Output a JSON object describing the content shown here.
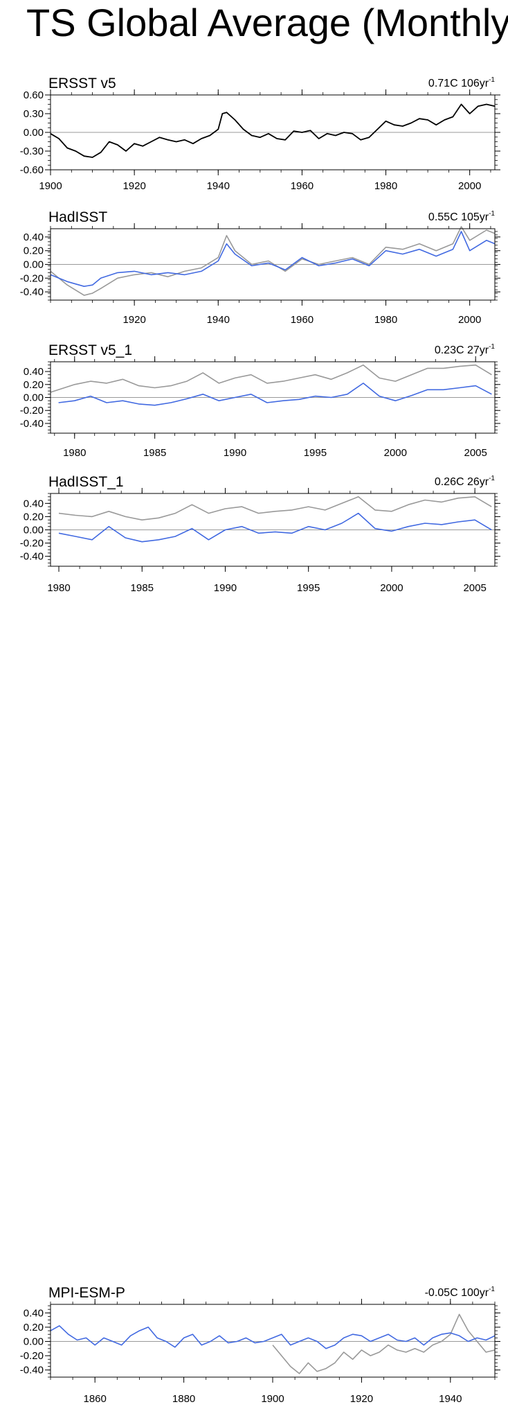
{
  "page": {
    "title": "TS Global Average (Monthly)"
  },
  "colors": {
    "obs": "#000000",
    "model": "#4169e1",
    "ref": "#999999",
    "zero": "#999999"
  },
  "chart_data": [
    {
      "type": "line",
      "title": "ERSST v5",
      "trend": {
        "value": "0.71C 106yr",
        "exp": "-1"
      },
      "xlim": [
        1900,
        2006
      ],
      "ylim": [
        -0.6,
        0.6
      ],
      "xticks": [
        1900,
        1920,
        1940,
        1960,
        1980,
        2000
      ],
      "yticks": [
        -0.6,
        -0.3,
        0.0,
        0.3,
        0.6
      ],
      "ytick_labels": [
        "-0.60",
        "-0.30",
        "0.00",
        "0.30",
        "0.60"
      ],
      "series": [
        {
          "style": "obs",
          "x": [
            1900,
            1902,
            1904,
            1906,
            1908,
            1910,
            1912,
            1914,
            1916,
            1918,
            1920,
            1922,
            1924,
            1926,
            1928,
            1930,
            1932,
            1934,
            1936,
            1938,
            1940,
            1941,
            1942,
            1944,
            1946,
            1948,
            1950,
            1952,
            1954,
            1956,
            1958,
            1960,
            1962,
            1964,
            1966,
            1968,
            1970,
            1972,
            1974,
            1976,
            1978,
            1980,
            1982,
            1984,
            1986,
            1988,
            1990,
            1992,
            1994,
            1996,
            1998,
            2000,
            2002,
            2004,
            2006
          ],
          "y": [
            -0.02,
            -0.1,
            -0.25,
            -0.3,
            -0.38,
            -0.4,
            -0.32,
            -0.15,
            -0.2,
            -0.3,
            -0.18,
            -0.22,
            -0.15,
            -0.08,
            -0.12,
            -0.15,
            -0.12,
            -0.18,
            -0.1,
            -0.05,
            0.05,
            0.3,
            0.32,
            0.2,
            0.05,
            -0.05,
            -0.08,
            -0.02,
            -0.1,
            -0.12,
            0.02,
            0.0,
            0.03,
            -0.1,
            -0.02,
            -0.05,
            0.0,
            -0.02,
            -0.12,
            -0.08,
            0.05,
            0.18,
            0.12,
            0.1,
            0.15,
            0.22,
            0.2,
            0.12,
            0.2,
            0.25,
            0.45,
            0.3,
            0.42,
            0.45,
            0.42
          ]
        }
      ]
    },
    {
      "type": "line",
      "title": "HadISST",
      "trend": {
        "value": "0.55C 105yr",
        "exp": "-1"
      },
      "xlim": [
        1900,
        2006
      ],
      "ylim": [
        -0.52,
        0.52
      ],
      "xticks": [
        1920,
        1940,
        1960,
        1980,
        2000
      ],
      "yticks": [
        -0.4,
        -0.2,
        0.0,
        0.2,
        0.4
      ],
      "ytick_labels": [
        "-0.40",
        "-0.20",
        "0.00",
        "0.20",
        "0.40"
      ],
      "series": [
        {
          "style": "ref",
          "x": [
            1900,
            1904,
            1908,
            1910,
            1912,
            1916,
            1920,
            1924,
            1928,
            1932,
            1936,
            1940,
            1942,
            1944,
            1948,
            1952,
            1956,
            1960,
            1964,
            1968,
            1972,
            1976,
            1980,
            1984,
            1988,
            1992,
            1996,
            1998,
            2000,
            2004,
            2006
          ],
          "y": [
            -0.1,
            -0.3,
            -0.45,
            -0.42,
            -0.35,
            -0.2,
            -0.15,
            -0.12,
            -0.18,
            -0.1,
            -0.05,
            0.1,
            0.42,
            0.2,
            0.0,
            0.05,
            -0.1,
            0.08,
            0.0,
            0.05,
            0.1,
            0.0,
            0.25,
            0.22,
            0.3,
            0.2,
            0.3,
            0.55,
            0.35,
            0.5,
            0.45
          ]
        },
        {
          "style": "model",
          "x": [
            1900,
            1904,
            1908,
            1910,
            1912,
            1916,
            1920,
            1924,
            1928,
            1932,
            1936,
            1940,
            1942,
            1944,
            1948,
            1952,
            1956,
            1960,
            1964,
            1968,
            1972,
            1976,
            1980,
            1984,
            1988,
            1992,
            1996,
            1998,
            2000,
            2004,
            2006
          ],
          "y": [
            -0.15,
            -0.25,
            -0.32,
            -0.3,
            -0.2,
            -0.12,
            -0.1,
            -0.15,
            -0.12,
            -0.15,
            -0.1,
            0.05,
            0.3,
            0.15,
            -0.02,
            0.02,
            -0.08,
            0.1,
            -0.02,
            0.02,
            0.08,
            -0.02,
            0.2,
            0.15,
            0.22,
            0.12,
            0.22,
            0.48,
            0.2,
            0.35,
            0.3
          ]
        }
      ]
    },
    {
      "type": "line",
      "title": "ERSST v5_1",
      "trend": {
        "value": "0.23C 27yr",
        "exp": "-1"
      },
      "xlim": [
        1978.5,
        2006.2
      ],
      "ylim": [
        -0.55,
        0.55
      ],
      "xticks": [
        1980,
        1985,
        1990,
        1995,
        2000,
        2005
      ],
      "yticks": [
        -0.4,
        -0.2,
        0.0,
        0.2,
        0.4
      ],
      "ytick_labels": [
        "-0.40",
        "-0.20",
        "0.00",
        "0.20",
        "0.40"
      ],
      "series": [
        {
          "style": "ref",
          "x": [
            1978.5,
            1980,
            1981,
            1982,
            1983,
            1984,
            1985,
            1986,
            1987,
            1988,
            1989,
            1990,
            1991,
            1992,
            1993,
            1994,
            1995,
            1996,
            1997,
            1998,
            1999,
            2000,
            2001,
            2002,
            2003,
            2004,
            2005,
            2006
          ],
          "y": [
            0.08,
            0.2,
            0.25,
            0.22,
            0.28,
            0.18,
            0.15,
            0.18,
            0.25,
            0.38,
            0.22,
            0.3,
            0.35,
            0.22,
            0.25,
            0.3,
            0.35,
            0.28,
            0.38,
            0.5,
            0.3,
            0.25,
            0.35,
            0.45,
            0.45,
            0.48,
            0.5,
            0.35
          ]
        },
        {
          "style": "model",
          "x": [
            1979,
            1980,
            1981,
            1982,
            1983,
            1984,
            1985,
            1986,
            1987,
            1988,
            1989,
            1990,
            1991,
            1992,
            1993,
            1994,
            1995,
            1996,
            1997,
            1998,
            1999,
            2000,
            2001,
            2002,
            2003,
            2004,
            2005,
            2006
          ],
          "y": [
            -0.08,
            -0.05,
            0.02,
            -0.08,
            -0.05,
            -0.1,
            -0.12,
            -0.08,
            -0.02,
            0.05,
            -0.05,
            0.0,
            0.05,
            -0.08,
            -0.05,
            -0.03,
            0.02,
            0.0,
            0.05,
            0.22,
            0.02,
            -0.05,
            0.03,
            0.12,
            0.12,
            0.15,
            0.18,
            0.05
          ]
        }
      ]
    },
    {
      "type": "line",
      "title": "HadISST_1",
      "trend": {
        "value": "0.26C 26yr",
        "exp": "-1"
      },
      "xlim": [
        1979.5,
        2006.2
      ],
      "ylim": [
        -0.55,
        0.55
      ],
      "xticks": [
        1980,
        1985,
        1990,
        1995,
        2000,
        2005
      ],
      "yticks": [
        -0.4,
        -0.2,
        0.0,
        0.2,
        0.4
      ],
      "ytick_labels": [
        "-0.40",
        "-0.20",
        "0.00",
        "0.20",
        "0.40"
      ],
      "series": [
        {
          "style": "ref",
          "x": [
            1980,
            1981,
            1982,
            1983,
            1984,
            1985,
            1986,
            1987,
            1988,
            1989,
            1990,
            1991,
            1992,
            1993,
            1994,
            1995,
            1996,
            1997,
            1998,
            1999,
            2000,
            2001,
            2002,
            2003,
            2004,
            2005,
            2006
          ],
          "y": [
            0.25,
            0.22,
            0.2,
            0.28,
            0.2,
            0.15,
            0.18,
            0.25,
            0.38,
            0.25,
            0.32,
            0.35,
            0.25,
            0.28,
            0.3,
            0.35,
            0.3,
            0.4,
            0.5,
            0.3,
            0.28,
            0.38,
            0.45,
            0.42,
            0.48,
            0.5,
            0.35
          ]
        },
        {
          "style": "model",
          "x": [
            1980,
            1981,
            1982,
            1983,
            1984,
            1985,
            1986,
            1987,
            1988,
            1989,
            1990,
            1991,
            1992,
            1993,
            1994,
            1995,
            1996,
            1997,
            1998,
            1999,
            2000,
            2001,
            2002,
            2003,
            2004,
            2005,
            2006
          ],
          "y": [
            -0.05,
            -0.1,
            -0.15,
            0.05,
            -0.12,
            -0.18,
            -0.15,
            -0.1,
            0.02,
            -0.15,
            0.0,
            0.05,
            -0.05,
            -0.03,
            -0.05,
            0.05,
            0.0,
            0.1,
            0.25,
            0.02,
            -0.02,
            0.05,
            0.1,
            0.08,
            0.12,
            0.15,
            0.0
          ]
        }
      ]
    },
    {
      "type": "line",
      "title": "MPI-ESM-P",
      "trend": {
        "value": "-0.05C 100yr",
        "exp": "-1"
      },
      "xlim": [
        1850,
        1950
      ],
      "ylim": [
        -0.5,
        0.52
      ],
      "xticks": [
        1860,
        1880,
        1900,
        1920,
        1940
      ],
      "yticks": [
        -0.4,
        -0.2,
        0.0,
        0.2,
        0.4
      ],
      "ytick_labels": [
        "-0.40",
        "-0.20",
        "0.00",
        "0.20",
        "0.40"
      ],
      "series": [
        {
          "style": "ref",
          "x": [
            1900,
            1902,
            1904,
            1906,
            1908,
            1910,
            1912,
            1914,
            1916,
            1918,
            1920,
            1922,
            1924,
            1926,
            1928,
            1930,
            1932,
            1934,
            1936,
            1938,
            1940,
            1942,
            1944,
            1946,
            1948,
            1950
          ],
          "y": [
            -0.05,
            -0.2,
            -0.35,
            -0.45,
            -0.3,
            -0.42,
            -0.38,
            -0.3,
            -0.15,
            -0.25,
            -0.12,
            -0.2,
            -0.15,
            -0.05,
            -0.12,
            -0.15,
            -0.1,
            -0.15,
            -0.05,
            0.0,
            0.1,
            0.38,
            0.15,
            0.0,
            -0.15,
            -0.12
          ]
        },
        {
          "style": "model",
          "x": [
            1850,
            1852,
            1854,
            1856,
            1858,
            1860,
            1862,
            1864,
            1866,
            1868,
            1870,
            1872,
            1874,
            1876,
            1878,
            1880,
            1882,
            1884,
            1886,
            1888,
            1890,
            1892,
            1894,
            1896,
            1898,
            1900,
            1902,
            1904,
            1906,
            1908,
            1910,
            1912,
            1914,
            1916,
            1918,
            1920,
            1922,
            1924,
            1926,
            1928,
            1930,
            1932,
            1934,
            1936,
            1938,
            1940,
            1942,
            1944,
            1946,
            1948,
            1950
          ],
          "y": [
            0.15,
            0.22,
            0.1,
            0.02,
            0.05,
            -0.05,
            0.05,
            0.0,
            -0.05,
            0.08,
            0.15,
            0.2,
            0.05,
            0.0,
            -0.08,
            0.05,
            0.1,
            -0.05,
            0.0,
            0.08,
            -0.02,
            0.0,
            0.05,
            -0.02,
            0.0,
            0.05,
            0.1,
            -0.05,
            0.0,
            0.05,
            0.0,
            -0.1,
            -0.05,
            0.05,
            0.1,
            0.08,
            0.0,
            0.05,
            0.1,
            0.02,
            0.0,
            0.05,
            -0.05,
            0.05,
            0.1,
            0.12,
            0.08,
            0.0,
            0.05,
            0.02,
            0.08
          ]
        }
      ]
    }
  ]
}
